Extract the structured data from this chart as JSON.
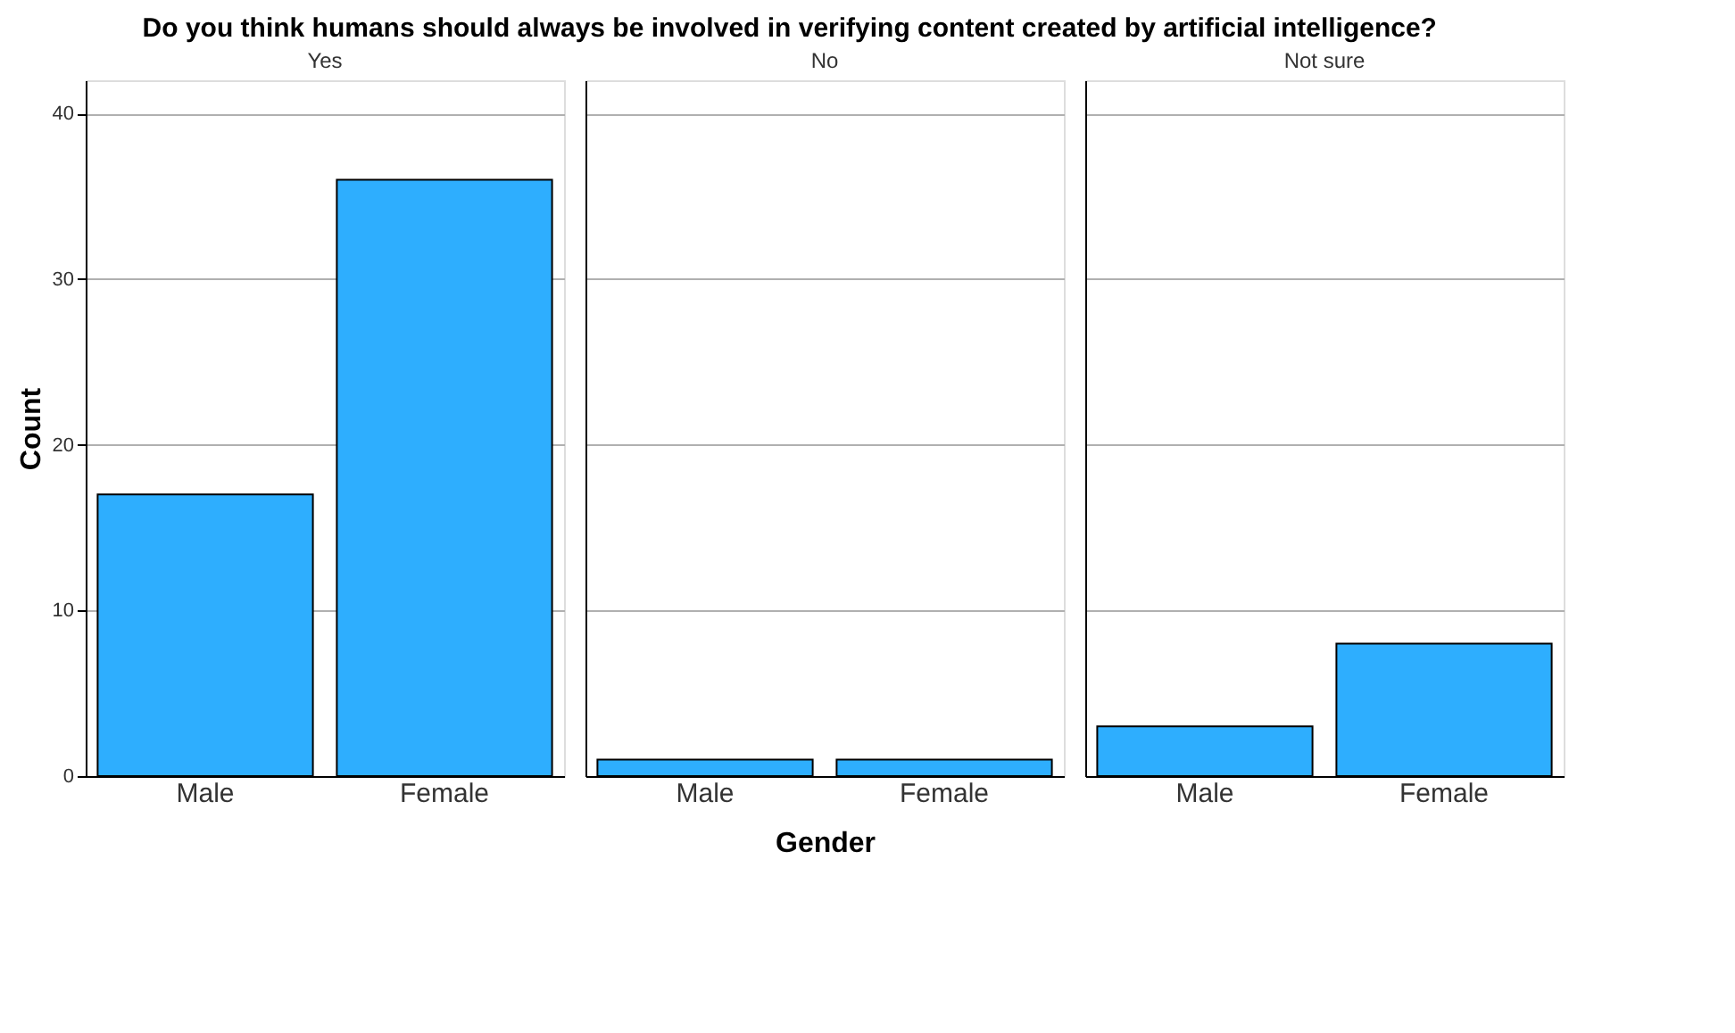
{
  "chart_data": [
    {
      "type": "bar",
      "title": "Do you think humans should always be involved in verifying content created by artificial intelligence?",
      "subtitle": "Yes",
      "ylabel": "Count",
      "categories": [
        "Male",
        "Female"
      ],
      "values": [
        17,
        36
      ],
      "color": "#2eaefe",
      "ylim": [
        0,
        42
      ],
      "yticks": [
        0,
        10,
        20,
        30,
        40
      ],
      "grid": "y"
    },
    {
      "type": "bar",
      "subtitle": "No",
      "xlabel": "Gender",
      "categories": [
        "Male",
        "Female"
      ],
      "values": [
        1,
        1
      ],
      "color": "#2eaefe",
      "ylim": [
        0,
        42
      ],
      "yticks": [
        0,
        10,
        20,
        30,
        40
      ],
      "grid": "y",
      "tick_labels": "x"
    },
    {
      "type": "bar",
      "subtitle": "Not sure",
      "categories": [
        "Male",
        "Female"
      ],
      "values": [
        3,
        8
      ],
      "color": "#2eaefe",
      "ylim": [
        0,
        42
      ],
      "yticks": [
        0,
        10,
        20,
        30,
        40
      ],
      "grid": "y",
      "tick_labels": "x"
    }
  ]
}
